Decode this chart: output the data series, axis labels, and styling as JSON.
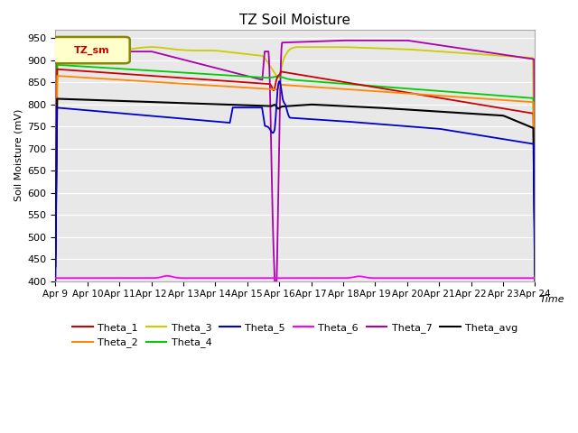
{
  "title": "TZ Soil Moisture",
  "ylabel": "Soil Moisture (mV)",
  "xlabel": "Time",
  "ylim": [
    400,
    970
  ],
  "yticks": [
    400,
    450,
    500,
    550,
    600,
    650,
    700,
    750,
    800,
    850,
    900,
    950
  ],
  "xtick_labels": [
    "Apr 9",
    "Apr 10",
    "Apr 11",
    "Apr 12",
    "Apr 13",
    "Apr 14",
    "Apr 15",
    "Apr 16",
    "Apr 17",
    "Apr 18",
    "Apr 19",
    "Apr 20",
    "Apr 21",
    "Apr 22",
    "Apr 23",
    "Apr 24"
  ],
  "bg_color": "#e8e8e8",
  "legend_label": "TZ_sm",
  "colors": {
    "Theta_1": "#cc0000",
    "Theta_2": "#ff8800",
    "Theta_3": "#cccc00",
    "Theta_4": "#00cc00",
    "Theta_5": "#0000cc",
    "Theta_6": "#ff00ff",
    "Theta_7": "#aa00aa",
    "Theta_avg": "#000000"
  }
}
